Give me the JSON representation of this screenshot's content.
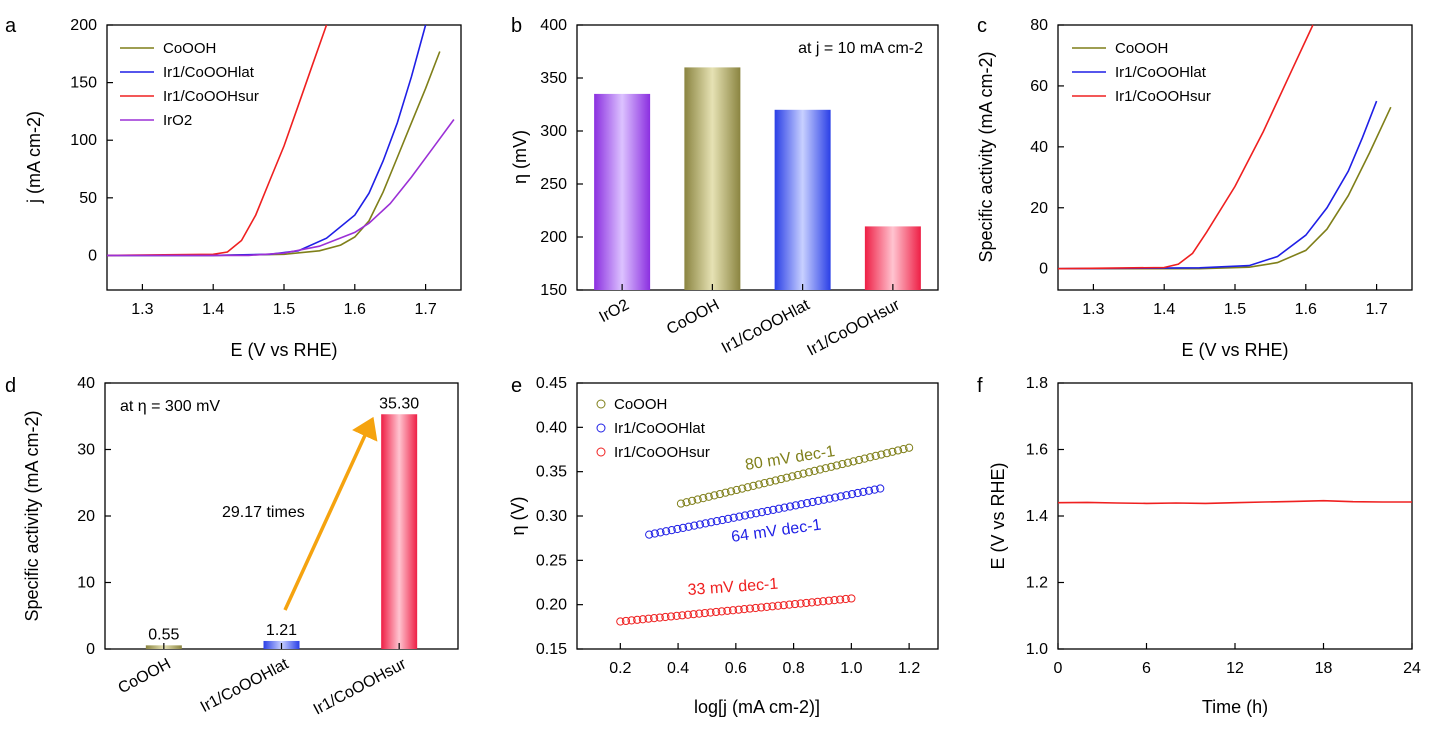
{
  "figure": {
    "panel_labels": [
      "a",
      "b",
      "c",
      "d",
      "e",
      "f"
    ]
  },
  "chart_data": [
    {
      "panel": "a",
      "type": "line",
      "xlabel": "E (V vs RHE)",
      "ylabel": "j (mA cm-2)",
      "xlim": [
        1.25,
        1.75
      ],
      "ylim": [
        -30,
        200
      ],
      "xticks": [
        "1.3",
        "1.4",
        "1.5",
        "1.6",
        "1.7"
      ],
      "yticks": [
        "0",
        "50",
        "100",
        "150",
        "200"
      ],
      "legend_position": "top-left",
      "series": [
        {
          "name": "CoOOH",
          "color": "#7f7f19",
          "x": [
            1.25,
            1.4,
            1.5,
            1.55,
            1.58,
            1.6,
            1.62,
            1.64,
            1.66,
            1.68,
            1.7,
            1.72
          ],
          "y": [
            0,
            0,
            1,
            4,
            9,
            16,
            30,
            55,
            85,
            115,
            145,
            177
          ]
        },
        {
          "name": "Ir1/CoOOHlat",
          "color": "#1f1fe6",
          "x": [
            1.25,
            1.4,
            1.48,
            1.52,
            1.56,
            1.6,
            1.62,
            1.64,
            1.66,
            1.68,
            1.7
          ],
          "y": [
            0,
            0,
            1,
            4,
            15,
            35,
            54,
            82,
            115,
            155,
            200
          ]
        },
        {
          "name": "Ir1/CoOOHsur",
          "color": "#ef2020",
          "x": [
            1.25,
            1.4,
            1.42,
            1.44,
            1.46,
            1.48,
            1.5,
            1.52,
            1.54,
            1.56
          ],
          "y": [
            0,
            1,
            3,
            13,
            35,
            65,
            95,
            130,
            165,
            200
          ]
        },
        {
          "name": "IrO2",
          "color": "#9b30d6",
          "x": [
            1.25,
            1.45,
            1.5,
            1.55,
            1.6,
            1.62,
            1.65,
            1.68,
            1.71,
            1.74
          ],
          "y": [
            0,
            0,
            2,
            8,
            20,
            28,
            45,
            68,
            93,
            118
          ]
        }
      ]
    },
    {
      "panel": "b",
      "type": "bar",
      "ylabel": "η (mV)",
      "ylim": [
        150,
        400
      ],
      "yticks": [
        "150",
        "200",
        "250",
        "300",
        "350",
        "400"
      ],
      "annotation": "at j = 10 mA cm-2",
      "categories": [
        "IrO2",
        "CoOOH",
        "Ir1/CoOOHlat",
        "Ir1/CoOOHsur"
      ],
      "values": [
        335,
        360,
        320,
        210
      ],
      "colors": [
        "#a64ef2",
        "#a7a25a",
        "#4a5ff2",
        "#f23a5a"
      ]
    },
    {
      "panel": "c",
      "type": "line",
      "xlabel": "E (V vs RHE)",
      "ylabel": "Specific activity (mA cm-2)",
      "xlim": [
        1.25,
        1.75
      ],
      "ylim": [
        -7,
        80
      ],
      "xticks": [
        "1.3",
        "1.4",
        "1.5",
        "1.6",
        "1.7"
      ],
      "yticks": [
        "0",
        "20",
        "40",
        "60",
        "80"
      ],
      "legend_position": "top-left",
      "series": [
        {
          "name": "CoOOH",
          "color": "#7f7f19",
          "x": [
            1.25,
            1.45,
            1.52,
            1.56,
            1.6,
            1.63,
            1.66,
            1.69,
            1.72
          ],
          "y": [
            0,
            0,
            0.5,
            2,
            6,
            13,
            24,
            38,
            53
          ]
        },
        {
          "name": "Ir1/CoOOHlat",
          "color": "#1f1fe6",
          "x": [
            1.25,
            1.45,
            1.52,
            1.56,
            1.6,
            1.63,
            1.66,
            1.68,
            1.7
          ],
          "y": [
            0,
            0.3,
            1,
            4,
            11,
            20,
            32,
            43,
            55
          ]
        },
        {
          "name": "Ir1/CoOOHsur",
          "color": "#ef2020",
          "x": [
            1.25,
            1.4,
            1.42,
            1.44,
            1.46,
            1.5,
            1.54,
            1.58,
            1.61
          ],
          "y": [
            0,
            0.4,
            1.5,
            5,
            12,
            27,
            45,
            65,
            80
          ]
        }
      ]
    },
    {
      "panel": "d",
      "type": "bar",
      "ylabel": "Specific activity (mA cm-2)",
      "ylim": [
        0,
        40
      ],
      "yticks": [
        "0",
        "10",
        "20",
        "30",
        "40"
      ],
      "annotation": "at η = 300 mV",
      "arrow_label": "29.17 times",
      "categories": [
        "CoOOH",
        "Ir1/CoOOHlat",
        "Ir1/CoOOHsur"
      ],
      "values": [
        0.55,
        1.21,
        35.3
      ],
      "value_labels": [
        "0.55",
        "1.21",
        "35.30"
      ],
      "colors": [
        "#a7a25a",
        "#4a5ff2",
        "#f23a5a"
      ],
      "arrow_color": "#f5a30f"
    },
    {
      "panel": "e",
      "type": "scatter",
      "xlabel": "log[j (mA cm-2)]",
      "ylabel": "η (V)",
      "xlim": [
        0.05,
        1.3
      ],
      "ylim": [
        0.15,
        0.45
      ],
      "xticks": [
        "0.2",
        "0.4",
        "0.6",
        "0.8",
        "1.0",
        "1.2"
      ],
      "yticks": [
        "0.15",
        "0.20",
        "0.25",
        "0.30",
        "0.35",
        "0.40",
        "0.45"
      ],
      "legend_position": "top-left",
      "series": [
        {
          "name": "CoOOH",
          "color": "#7f7f19",
          "x_range": [
            0.41,
            1.2
          ],
          "y_range": [
            0.314,
            0.377
          ],
          "slope_label": "80 mV dec-1"
        },
        {
          "name": "Ir1/CoOOHlat",
          "color": "#1f1fe6",
          "x_range": [
            0.3,
            1.1
          ],
          "y_range": [
            0.279,
            0.331
          ],
          "slope_label": "64 mV dec-1"
        },
        {
          "name": "Ir1/CoOOHsur",
          "color": "#ef2020",
          "x_range": [
            0.2,
            1.0
          ],
          "y_range": [
            0.181,
            0.207
          ],
          "slope_label": "33 mV dec-1"
        }
      ]
    },
    {
      "panel": "f",
      "type": "line",
      "xlabel": "Time (h)",
      "ylabel": "E (V vs RHE)",
      "xlim": [
        0,
        24
      ],
      "ylim": [
        1.0,
        1.8
      ],
      "xticks": [
        "0",
        "6",
        "12",
        "18",
        "24"
      ],
      "yticks": [
        "1.0",
        "1.2",
        "1.4",
        "1.6",
        "1.8"
      ],
      "series": [
        {
          "name": "",
          "color": "#ef2020",
          "x": [
            0,
            2,
            4,
            6,
            8,
            10,
            12,
            14,
            16,
            18,
            20,
            22,
            24
          ],
          "y": [
            1.44,
            1.441,
            1.439,
            1.438,
            1.439,
            1.438,
            1.44,
            1.442,
            1.444,
            1.446,
            1.443,
            1.442,
            1.442
          ]
        }
      ]
    }
  ]
}
